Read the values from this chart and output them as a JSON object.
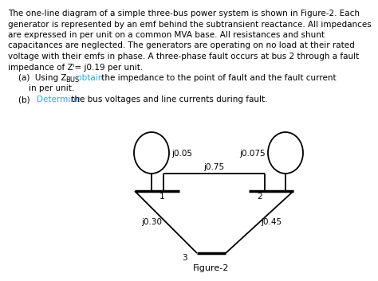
{
  "text_lines": [
    "The one-line diagram of a simple three-bus power system is shown in Figure-2. Each",
    "generator is represented by an emf behind the subtransient reactance. All impedances",
    "are expressed in per unit on a common MVA base. All resistances and shunt",
    "capacitances are neglected. The generators are operating on no load at their rated",
    "voltage with their emfs in phase. A three-phase fault occurs at bus 2 through a fault",
    "impedance of Zⁱ= j0.19 per unit."
  ],
  "a_pre1": "    (a)  Using Z",
  "a_sub": "BUS",
  "a_cyan": " obtain",
  "a_post": " the impedance to the point of fault and the fault current",
  "a_line2": "        in per unit.",
  "b_pre": "    (b) ",
  "b_cyan": "Determine",
  "b_post": " the bus voltages and line currents during fault.",
  "cyan_color": "#2AACE2",
  "gen1_label": "j0.05",
  "gen2_label": "j0.075",
  "line12_label": "j0.75",
  "line13_label": "j0.30",
  "line23_label": "j0.45",
  "bus1_label": "1",
  "bus2_label": "2",
  "bus3_label": "3",
  "fig_label": "Figure-2",
  "bg_color": "#FFFFFF",
  "font_size": 7.5,
  "diagram_font_size": 7.5
}
